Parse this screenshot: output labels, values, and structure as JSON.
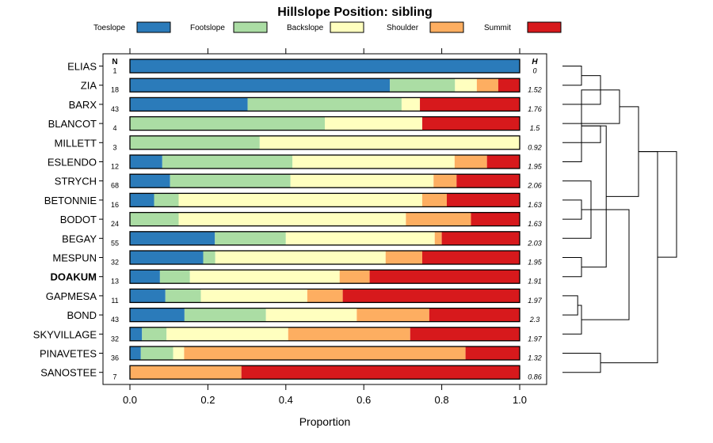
{
  "chart_data": {
    "type": "bar",
    "stacked": true,
    "orientation": "horizontal",
    "title": "Hillslope Position: sibling",
    "xlabel": "Proportion",
    "ylabel": "",
    "xlim": [
      0,
      1
    ],
    "x_ticks": [
      "0.0",
      "0.2",
      "0.4",
      "0.6",
      "0.8",
      "1.0"
    ],
    "n_header": "N",
    "h_header": "H",
    "legend_position": "top",
    "series": [
      {
        "name": "Toeslope",
        "color": "#2b7bba"
      },
      {
        "name": "Footslope",
        "color": "#abdda4"
      },
      {
        "name": "Backslope",
        "color": "#ffffbf"
      },
      {
        "name": "Shoulder",
        "color": "#fdae61"
      },
      {
        "name": "Summit",
        "color": "#d7191c"
      }
    ],
    "rows": [
      {
        "label": "ELIAS",
        "n": "1",
        "h": "0",
        "bold": false,
        "values": [
          1.0,
          0.0,
          0.0,
          0.0,
          0.0
        ]
      },
      {
        "label": "ZIA",
        "n": "18",
        "h": "1.52",
        "bold": false,
        "values": [
          0.667,
          0.167,
          0.056,
          0.055,
          0.055
        ]
      },
      {
        "label": "BARX",
        "n": "43",
        "h": "1.76",
        "bold": false,
        "values": [
          0.302,
          0.395,
          0.047,
          0.0,
          0.256
        ]
      },
      {
        "label": "BLANCOT",
        "n": "4",
        "h": "1.5",
        "bold": false,
        "values": [
          0.0,
          0.5,
          0.25,
          0.0,
          0.25
        ]
      },
      {
        "label": "MILLETT",
        "n": "3",
        "h": "0.92",
        "bold": false,
        "values": [
          0.0,
          0.333,
          0.667,
          0.0,
          0.0
        ]
      },
      {
        "label": "ESLENDO",
        "n": "12",
        "h": "1.95",
        "bold": false,
        "values": [
          0.083,
          0.334,
          0.416,
          0.083,
          0.084
        ]
      },
      {
        "label": "STRYCH",
        "n": "68",
        "h": "2.06",
        "bold": false,
        "values": [
          0.103,
          0.309,
          0.367,
          0.059,
          0.162
        ]
      },
      {
        "label": "BETONNIE",
        "n": "16",
        "h": "1.63",
        "bold": false,
        "values": [
          0.062,
          0.063,
          0.625,
          0.063,
          0.187
        ]
      },
      {
        "label": "BODOT",
        "n": "24",
        "h": "1.63",
        "bold": false,
        "values": [
          0.0,
          0.125,
          0.583,
          0.167,
          0.125
        ]
      },
      {
        "label": "BEGAY",
        "n": "55",
        "h": "2.03",
        "bold": false,
        "values": [
          0.218,
          0.182,
          0.382,
          0.018,
          0.2
        ]
      },
      {
        "label": "MESPUN",
        "n": "32",
        "h": "1.95",
        "bold": false,
        "values": [
          0.188,
          0.031,
          0.437,
          0.094,
          0.25
        ]
      },
      {
        "label": "DOAKUM",
        "n": "13",
        "h": "1.91",
        "bold": true,
        "values": [
          0.077,
          0.077,
          0.384,
          0.077,
          0.385
        ]
      },
      {
        "label": "GAPMESA",
        "n": "11",
        "h": "1.97",
        "bold": false,
        "values": [
          0.091,
          0.091,
          0.273,
          0.091,
          0.454
        ]
      },
      {
        "label": "BOND",
        "n": "43",
        "h": "2.3",
        "bold": false,
        "values": [
          0.14,
          0.209,
          0.233,
          0.186,
          0.232
        ]
      },
      {
        "label": "SKYVILLAGE",
        "n": "32",
        "h": "1.97",
        "bold": false,
        "values": [
          0.031,
          0.063,
          0.312,
          0.313,
          0.281
        ]
      },
      {
        "label": "PINAVETES",
        "n": "36",
        "h": "1.32",
        "bold": false,
        "values": [
          0.028,
          0.083,
          0.028,
          0.722,
          0.139
        ]
      },
      {
        "label": "SANOSTEE",
        "n": "7",
        "h": "0.86",
        "bold": false,
        "values": [
          0.0,
          0.0,
          0.0,
          0.286,
          0.714
        ]
      }
    ],
    "dendrogram": {
      "type": "hierarchical-clustering",
      "merges": [
        [
          0,
          1,
          1.0
        ],
        [
          0,
          2,
          2.0
        ],
        [
          0,
          3,
          3.0
        ],
        [
          8,
          7,
          1.0
        ],
        [
          9,
          6,
          1.5
        ],
        [
          2,
          5,
          1.0
        ],
        [
          5,
          4,
          2.0
        ],
        [
          11,
          10,
          1.0
        ],
        [
          12,
          13,
          0.8
        ],
        [
          13,
          14,
          1.0
        ],
        [
          16,
          15,
          2.0
        ],
        [
          14,
          7,
          3.5
        ],
        [
          2,
          10,
          2.3
        ],
        [
          0,
          2,
          4.0
        ],
        [
          2,
          16,
          5.0
        ],
        [
          0,
          2,
          6.0
        ]
      ]
    }
  }
}
